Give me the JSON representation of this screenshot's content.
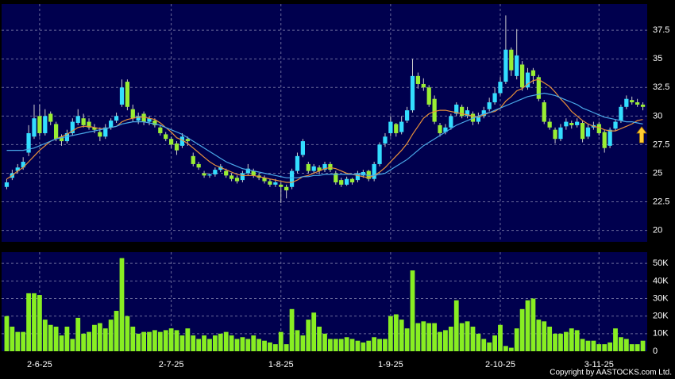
{
  "chart_data": {
    "type": "candlestick",
    "categories": [
      null,
      null,
      null,
      null,
      null,
      null,
      "2-6-25",
      null,
      null,
      null,
      null,
      null,
      null,
      null,
      null,
      null,
      null,
      null,
      null,
      null,
      null,
      null,
      null,
      null,
      null,
      null,
      null,
      null,
      null,
      null,
      "2-7-25",
      null,
      null,
      null,
      null,
      null,
      null,
      null,
      null,
      null,
      null,
      null,
      null,
      null,
      null,
      null,
      null,
      null,
      null,
      null,
      "1-8-25",
      null,
      null,
      null,
      null,
      null,
      null,
      null,
      null,
      null,
      null,
      null,
      null,
      null,
      null,
      null,
      null,
      null,
      null,
      null,
      "1-9-25",
      null,
      null,
      null,
      null,
      null,
      null,
      null,
      null,
      null,
      null,
      null,
      null,
      null,
      null,
      null,
      null,
      null,
      null,
      null,
      "2-10-25",
      null,
      null,
      null,
      null,
      null,
      null,
      null,
      null,
      null,
      null,
      null,
      null,
      null,
      null,
      null,
      null,
      null,
      "3-11-25",
      null,
      null,
      null,
      null,
      null,
      null,
      null,
      null
    ],
    "ohlc": [
      [
        23.8,
        24.5,
        23.6,
        24.2
      ],
      [
        24.6,
        25.3,
        24.4,
        25
      ],
      [
        25.2,
        25.8,
        25,
        25.5
      ],
      [
        25.5,
        26.4,
        25.3,
        26
      ],
      [
        26.8,
        29.2,
        26.5,
        28.5
      ],
      [
        28.2,
        31,
        28,
        29.8
      ],
      [
        30,
        31,
        28.2,
        28.5
      ],
      [
        28.5,
        30.6,
        28.3,
        30
      ],
      [
        30.2,
        30.4,
        29.2,
        29.5
      ],
      [
        29.3,
        29.5,
        27.8,
        28
      ],
      [
        28.2,
        28.4,
        27.4,
        27.8
      ],
      [
        27.8,
        28.8,
        27.6,
        28.5
      ],
      [
        28.5,
        29.8,
        28.3,
        29.5
      ],
      [
        29.4,
        30.6,
        29.2,
        30
      ],
      [
        29.8,
        30.2,
        29,
        29.2
      ],
      [
        29.5,
        29.8,
        28.8,
        29
      ],
      [
        29,
        29.3,
        28.5,
        28.8
      ],
      [
        28.6,
        29,
        27.8,
        28.2
      ],
      [
        28.2,
        29.3,
        28,
        29
      ],
      [
        29,
        29.8,
        28.8,
        29.6
      ],
      [
        29.6,
        30.3,
        29.4,
        30
      ],
      [
        31,
        33.2,
        30.8,
        32.5
      ],
      [
        33,
        33.2,
        30.5,
        30.8
      ],
      [
        30.6,
        31,
        29.5,
        29.8
      ],
      [
        29.6,
        30.3,
        29.3,
        30
      ],
      [
        30.2,
        30.4,
        29.2,
        29.5
      ],
      [
        29.5,
        30,
        29.2,
        29.8
      ],
      [
        29.6,
        29.8,
        29,
        29.2
      ],
      [
        29,
        29.2,
        28.3,
        28.5
      ],
      [
        28.4,
        28.6,
        27.8,
        28
      ],
      [
        28,
        28.2,
        27.2,
        27.5
      ],
      [
        27.6,
        27.8,
        26.6,
        27
      ],
      [
        27.4,
        28.5,
        27.2,
        28.2
      ],
      [
        28,
        28.2,
        27.4,
        27.8
      ],
      [
        26.5,
        26.8,
        25.6,
        25.8
      ],
      [
        25.8,
        26,
        25.3,
        25.5
      ],
      [
        25,
        25.2,
        24.6,
        24.8
      ],
      [
        24.8,
        25,
        24.6,
        24.9
      ],
      [
        24.9,
        25.5,
        24.7,
        25.3
      ],
      [
        25.3,
        25.8,
        25.1,
        25.6
      ],
      [
        25.2,
        25.4,
        24.6,
        24.8
      ],
      [
        24.8,
        25,
        24.3,
        24.5
      ],
      [
        24.6,
        24.8,
        24.1,
        24.3
      ],
      [
        24.4,
        25.2,
        24.2,
        25
      ],
      [
        25,
        25.8,
        24.8,
        25.4
      ],
      [
        25.2,
        25.4,
        24.6,
        24.8
      ],
      [
        24.8,
        25,
        24.4,
        24.6
      ],
      [
        24.6,
        24.8,
        24.1,
        24.3
      ],
      [
        24.3,
        24.5,
        23.8,
        24
      ],
      [
        24,
        24.5,
        23.8,
        24.2
      ],
      [
        24,
        24.2,
        22.4,
        23.8
      ],
      [
        23.8,
        24,
        22.8,
        23.5
      ],
      [
        23.8,
        25.4,
        23.6,
        25.2
      ],
      [
        25.2,
        26.8,
        25,
        26.5
      ],
      [
        26.6,
        28,
        26.4,
        27.8
      ],
      [
        25.8,
        26,
        25,
        25.2
      ],
      [
        25.2,
        25.8,
        25,
        25.6
      ],
      [
        25.5,
        25.7,
        24.9,
        25.2
      ],
      [
        25.3,
        26,
        25.1,
        25.8
      ],
      [
        25.8,
        26,
        25.1,
        25.3
      ],
      [
        25,
        25.2,
        24,
        24.2
      ],
      [
        24.4,
        24.6,
        23.8,
        24
      ],
      [
        24,
        24.7,
        23.9,
        24.5
      ],
      [
        24.5,
        24.6,
        24,
        24.2
      ],
      [
        24.4,
        25.2,
        24.2,
        25
      ],
      [
        24.8,
        25.3,
        24.6,
        25.1
      ],
      [
        25.2,
        25.3,
        24.3,
        24.5
      ],
      [
        24.5,
        26,
        24.3,
        25.8
      ],
      [
        25.8,
        27.7,
        25.6,
        27.5
      ],
      [
        27.6,
        28.5,
        27.3,
        28.2
      ],
      [
        28.5,
        30,
        28.2,
        29.5
      ],
      [
        29.3,
        29.4,
        28.2,
        28.5
      ],
      [
        28.6,
        30,
        28.4,
        29.5
      ],
      [
        29.6,
        30.8,
        29.4,
        30.5
      ],
      [
        30.5,
        35,
        30.3,
        33.5
      ],
      [
        33.5,
        33.8,
        32.4,
        32.8
      ],
      [
        32.8,
        33.3,
        32.2,
        32.5
      ],
      [
        32.5,
        32.7,
        30.8,
        31
      ],
      [
        31.5,
        31.8,
        29.3,
        29.5
      ],
      [
        29.2,
        29.4,
        28.2,
        28.5
      ],
      [
        28.6,
        29.3,
        28.4,
        29
      ],
      [
        29,
        30.2,
        28.8,
        30
      ],
      [
        30.2,
        31.2,
        30,
        31
      ],
      [
        30.8,
        31,
        29.8,
        30
      ],
      [
        30,
        30.8,
        29.8,
        30.5
      ],
      [
        30.2,
        30.4,
        29.2,
        29.5
      ],
      [
        29.5,
        30.3,
        29.3,
        30
      ],
      [
        30,
        30.8,
        29.8,
        30.5
      ],
      [
        30.6,
        31.6,
        30.4,
        31.2
      ],
      [
        31.2,
        32.5,
        31,
        32
      ],
      [
        32,
        33.4,
        31.8,
        33
      ],
      [
        33,
        38.8,
        32.8,
        35.8
      ],
      [
        35.8,
        36,
        33.5,
        34
      ],
      [
        33.5,
        37.6,
        33.2,
        35.3
      ],
      [
        34.5,
        34.8,
        32.2,
        32.5
      ],
      [
        32.5,
        34.2,
        32.3,
        33.8
      ],
      [
        34,
        34.2,
        32.8,
        33.5
      ],
      [
        33.4,
        33.6,
        31.3,
        31.5
      ],
      [
        31.2,
        31.4,
        29.3,
        29.5
      ],
      [
        29.5,
        29.8,
        28.8,
        29
      ],
      [
        28.8,
        29,
        27.6,
        28
      ],
      [
        28,
        29.3,
        27.8,
        29
      ],
      [
        29.1,
        29.8,
        28.8,
        29.5
      ],
      [
        29.4,
        29.6,
        28.9,
        29.2
      ],
      [
        29.2,
        29.8,
        29,
        29.5
      ],
      [
        29.4,
        29.6,
        27.7,
        28
      ],
      [
        28.2,
        29.3,
        28,
        29
      ],
      [
        29,
        29.5,
        28.8,
        29.2
      ],
      [
        29.3,
        29.5,
        28.3,
        28.5
      ],
      [
        28.6,
        28.8,
        26.8,
        27.2
      ],
      [
        27.4,
        29,
        27.2,
        28.8
      ],
      [
        28.9,
        29.7,
        28.7,
        29.5
      ],
      [
        29.6,
        31,
        29.4,
        30.8
      ],
      [
        30.8,
        31.8,
        30.6,
        31.5
      ],
      [
        31.4,
        31.7,
        31,
        31.2
      ],
      [
        31.2,
        31.5,
        30.8,
        31
      ],
      [
        31,
        31.2,
        30.5,
        30.8
      ]
    ],
    "up_color": "#33ddff",
    "down_color": "#99ee33",
    "series": [
      {
        "color": "#e8903a",
        "values": [
          24.5,
          24.8,
          25.2,
          25.5,
          26,
          26.5,
          27,
          27.4,
          27.8,
          28,
          28.2,
          28.4,
          28.7,
          29,
          29.1,
          29.1,
          29,
          28.9,
          28.9,
          29,
          29.1,
          29.5,
          29.7,
          29.8,
          29.9,
          29.9,
          29.8,
          29.7,
          29.4,
          29,
          28.6,
          28.1,
          27.9,
          27.6,
          27.2,
          26.8,
          26.4,
          26,
          25.7,
          25.5,
          25.3,
          25.1,
          24.9,
          24.8,
          24.8,
          24.8,
          24.7,
          24.6,
          24.5,
          24.4,
          24.3,
          24.2,
          24.2,
          24.4,
          24.7,
          24.8,
          25,
          25.2,
          25.4,
          25.5,
          25.4,
          25.2,
          25,
          24.9,
          24.8,
          24.7,
          24.6,
          24.8,
          25.1,
          25.5,
          26,
          26.5,
          27,
          27.6,
          28.4,
          29.1,
          29.8,
          30.2,
          30.4,
          30.5,
          30.5,
          30.4,
          30.3,
          30.2,
          30.1,
          30,
          29.9,
          30.1,
          30.3,
          30.4,
          30.7,
          31.3,
          31.7,
          32.2,
          32.4,
          32.8,
          33.1,
          33.2,
          32.9,
          32.6,
          32.1,
          31.5,
          31,
          30.4,
          30,
          29.6,
          29.3,
          29.1,
          29,
          28.8,
          28.7,
          28.7,
          28.9,
          29.1,
          29.3,
          29.6,
          29.7
        ]
      },
      {
        "color": "#4aa8e8",
        "values": [
          27,
          27,
          27,
          27,
          27.1,
          27.2,
          27.4,
          27.6,
          27.8,
          28,
          28.1,
          28.2,
          28.3,
          28.4,
          28.5,
          28.6,
          28.7,
          28.8,
          28.9,
          29,
          29.1,
          29.3,
          29.4,
          29.5,
          29.5,
          29.5,
          29.4,
          29.3,
          29.2,
          29,
          28.8,
          28.6,
          28.4,
          28.1,
          27.8,
          27.5,
          27.2,
          26.9,
          26.6,
          26.3,
          26,
          25.8,
          25.6,
          25.4,
          25.3,
          25.2,
          25.1,
          25,
          24.9,
          24.8,
          24.7,
          24.6,
          24.6,
          24.6,
          24.7,
          24.7,
          24.8,
          24.8,
          24.9,
          24.9,
          24.9,
          24.9,
          24.9,
          24.9,
          24.9,
          24.9,
          24.8,
          24.8,
          24.9,
          25,
          25.3,
          25.6,
          25.9,
          26.2,
          26.6,
          27,
          27.4,
          27.7,
          28,
          28.3,
          28.6,
          28.9,
          29.2,
          29.4,
          29.6,
          29.8,
          30,
          30.2,
          30.3,
          30.5,
          30.7,
          30.9,
          31.1,
          31.3,
          31.5,
          31.7,
          31.8,
          31.9,
          32,
          31.9,
          31.8,
          31.6,
          31.4,
          31.2,
          31,
          30.7,
          30.5,
          30.3,
          30.1,
          29.9,
          29.8,
          29.7,
          29.6,
          29.5,
          29.5,
          29.4,
          29.3
        ]
      }
    ],
    "ylim": [
      19,
      39.8
    ],
    "yticks": [
      20,
      22.5,
      25,
      27.5,
      30,
      32.5,
      35,
      37.5
    ],
    "volume": {
      "color": "#88ee22",
      "values": [
        20000,
        14000,
        11000,
        11000,
        33000,
        33000,
        32000,
        18000,
        15000,
        14000,
        9000,
        14000,
        7000,
        19000,
        10000,
        11000,
        15000,
        16000,
        13000,
        18000,
        23000,
        53000,
        20000,
        14000,
        10000,
        11000,
        11000,
        12000,
        11000,
        12000,
        13000,
        12000,
        9000,
        13000,
        9000,
        7000,
        9000,
        7000,
        9000,
        10000,
        11000,
        9000,
        7000,
        8000,
        7000,
        9000,
        7000,
        6000,
        5000,
        4000,
        11000,
        4000,
        24000,
        12000,
        9000,
        18000,
        22000,
        14000,
        10000,
        7000,
        7000,
        7000,
        8000,
        7000,
        6000,
        5000,
        6000,
        8000,
        7000,
        7000,
        20000,
        21000,
        18000,
        13000,
        46000,
        16000,
        17000,
        16000,
        16000,
        11000,
        12000,
        14000,
        29000,
        16000,
        17000,
        14000,
        10000,
        7000,
        5000,
        9000,
        15000,
        3000,
        2000,
        13000,
        24000,
        29000,
        30000,
        18000,
        17000,
        14000,
        10000,
        10000,
        11000,
        13000,
        12000,
        7000,
        6000,
        6000,
        4000,
        4000,
        5000,
        13000,
        8000,
        7000,
        4000,
        4000,
        6000
      ],
      "ylim": [
        0,
        56400
      ],
      "yticks": [
        0,
        {
          "value": 10000,
          "label": "10K"
        },
        {
          "value": 20000,
          "label": "20K"
        },
        {
          "value": 30000,
          "label": "30K"
        },
        {
          "value": 40000,
          "label": "40K"
        },
        {
          "value": 50000,
          "label": "50K"
        }
      ]
    },
    "grid": true
  },
  "footer": "Copyright by AASTOCKS.com Ltd."
}
